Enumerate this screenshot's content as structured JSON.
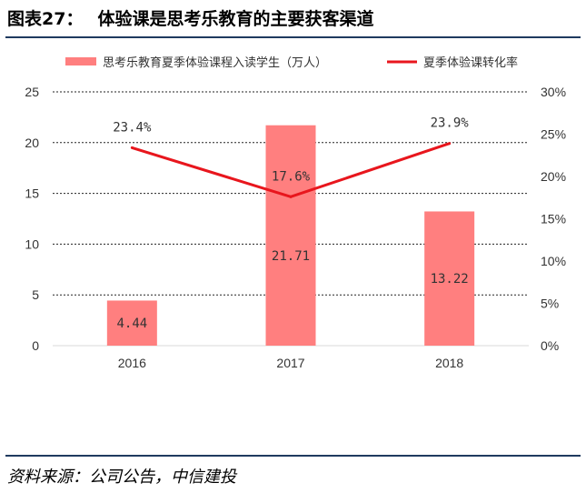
{
  "header": {
    "figure_number": "图表27：",
    "title": "体验课是思考乐教育的主要获客渠道"
  },
  "footer": {
    "source": "资料来源：公司公告，中信建投"
  },
  "colors": {
    "bar": "#ff7f7f",
    "line": "#e8161d",
    "rule": "#1f3a5f",
    "grid": "#222222"
  },
  "chart_data": {
    "type": "bar",
    "categories": [
      "2016",
      "2017",
      "2018"
    ],
    "series": [
      {
        "name": "思考乐教育夏季体验课程入读学生（万人）",
        "type": "bar",
        "axis": "left",
        "values": [
          4.44,
          21.71,
          13.22
        ],
        "labels": [
          "4.44",
          "21.71",
          "13.22"
        ]
      },
      {
        "name": "夏季体验课转化率",
        "type": "line",
        "axis": "right",
        "values": [
          23.4,
          17.6,
          23.9
        ],
        "labels": [
          "23.4%",
          "17.6%",
          "23.9%"
        ]
      }
    ],
    "y_left": {
      "min": 0,
      "max": 25,
      "ticks": [
        "0",
        "5",
        "10",
        "15",
        "20",
        "25"
      ]
    },
    "y_right": {
      "min": 0,
      "max": 30,
      "unit": "%",
      "ticks": [
        "0%",
        "5%",
        "10%",
        "15%",
        "20%",
        "25%",
        "30%"
      ]
    },
    "grid": "dashed horizontal",
    "legend_position": "top"
  }
}
